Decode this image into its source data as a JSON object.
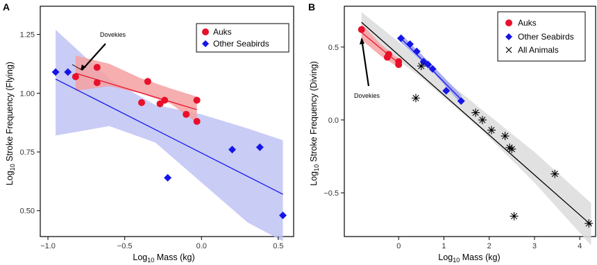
{
  "chart_data": [
    {
      "panel": "A",
      "type": "scatter",
      "xlabel": "Log10 Mass (kg)",
      "ylabel": "Log10 Stroke Frequency (Flying)",
      "xlim": [
        -1.05,
        0.6
      ],
      "ylim": [
        0.39,
        1.37
      ],
      "xticks": [
        -1.0,
        -0.5,
        0.0,
        0.5
      ],
      "xtick_labels": [
        "−1.0",
        "−0.5",
        "0.0",
        "0.5"
      ],
      "yticks": [
        0.5,
        0.75,
        1.0,
        1.25
      ],
      "ytick_labels": [
        "0.50",
        "0.75",
        "1.00",
        "1.25"
      ],
      "grid": false,
      "legend_position": "top-right",
      "annotation": {
        "text": "Dovekies",
        "points_to": [
          -0.82,
          1.07
        ]
      },
      "series": [
        {
          "name": "Auks",
          "marker": "circle",
          "color": "#e8102a",
          "x": [
            -0.82,
            -0.68,
            -0.68,
            -0.35,
            -0.39,
            -0.27,
            -0.24,
            -0.1,
            -0.03,
            -0.03
          ],
          "y": [
            1.07,
            1.11,
            1.045,
            1.05,
            0.96,
            0.955,
            0.97,
            0.91,
            0.97,
            0.88
          ],
          "fit": {
            "x": [
              -0.82,
              -0.03
            ],
            "y": [
              1.085,
              0.93
            ]
          },
          "ci_band": {
            "x": [
              -0.82,
              -0.6,
              -0.4,
              -0.2,
              -0.03
            ],
            "upper": [
              1.16,
              1.125,
              1.065,
              1.02,
              0.985
            ],
            "lower": [
              1.01,
              1.03,
              1.0,
              0.955,
              0.875
            ]
          },
          "ci_color": "#f4a0a0"
        },
        {
          "name": "Other Seabirds",
          "marker": "diamond",
          "color": "#1515e8",
          "x": [
            -0.95,
            -0.87,
            -0.22,
            0.2,
            0.38,
            0.53
          ],
          "y": [
            1.09,
            1.09,
            0.64,
            0.76,
            0.77,
            0.48
          ],
          "fit": {
            "x": [
              -0.95,
              0.53
            ],
            "y": [
              1.06,
              0.57
            ]
          },
          "ci_band": {
            "x": [
              -0.95,
              -0.6,
              -0.3,
              0.0,
              0.3,
              0.53
            ],
            "upper": [
              1.27,
              1.06,
              0.95,
              0.91,
              0.85,
              0.8
            ],
            "lower": [
              0.82,
              0.86,
              0.79,
              0.62,
              0.45,
              0.37
            ]
          },
          "ci_color": "#c0c3f3"
        }
      ]
    },
    {
      "panel": "B",
      "type": "scatter",
      "xlabel": "Log10 Mass (kg)",
      "ylabel": "Log10 Stroke Frequency (Diving)",
      "xlim": [
        -1.2,
        4.35
      ],
      "ylim": [
        -0.8,
        0.78
      ],
      "xticks": [
        0,
        1,
        2,
        3,
        4
      ],
      "xtick_labels": [
        "0",
        "1",
        "2",
        "3",
        "4"
      ],
      "yticks": [
        -0.5,
        0.0,
        0.5
      ],
      "ytick_labels": [
        "−0.5",
        "0.0",
        "0.5"
      ],
      "grid": false,
      "legend_position": "top-right",
      "annotation": {
        "text": "Dovekies",
        "points_to": [
          -0.82,
          0.6
        ]
      },
      "series": [
        {
          "name": "Auks",
          "marker": "circle",
          "color": "#e8102a",
          "x": [
            -0.82,
            -0.25,
            -0.22,
            0.0,
            0.0
          ],
          "y": [
            0.62,
            0.43,
            0.45,
            0.38,
            0.4
          ],
          "fit": {
            "x": [
              -0.82,
              0.0
            ],
            "y": [
              0.6,
              0.39
            ]
          },
          "ci_band": {
            "x": [
              -0.82,
              -0.4,
              0.0
            ],
            "upper": [
              0.66,
              0.52,
              0.42
            ],
            "lower": [
              0.55,
              0.44,
              0.36
            ]
          },
          "ci_color": "#f4a0a0"
        },
        {
          "name": "Other Seabirds",
          "marker": "diamond",
          "color": "#1515e8",
          "x": [
            0.05,
            0.25,
            0.4,
            0.55,
            0.65,
            0.75,
            1.05,
            1.38
          ],
          "y": [
            0.56,
            0.52,
            0.47,
            0.4,
            0.38,
            0.35,
            0.2,
            0.13
          ],
          "fit": {
            "x": [
              0.05,
              1.38
            ],
            "y": [
              0.56,
              0.14
            ]
          },
          "ci_band": {
            "x": [
              0.05,
              0.7,
              1.38
            ],
            "upper": [
              0.59,
              0.39,
              0.17
            ],
            "lower": [
              0.53,
              0.35,
              0.11
            ]
          },
          "ci_color": "#9ea2f0"
        },
        {
          "name": "All Animals",
          "marker": "asterisk",
          "color": "#000000",
          "x": [
            0.38,
            0.5,
            1.7,
            1.85,
            2.05,
            2.35,
            2.45,
            2.5,
            2.55,
            3.45,
            4.2
          ],
          "y": [
            0.15,
            0.37,
            0.05,
            0.0,
            -0.07,
            -0.11,
            -0.19,
            -0.2,
            -0.66,
            -0.37,
            -0.71
          ],
          "fit": {
            "x": [
              -0.82,
              4.25
            ],
            "y": [
              0.67,
              -0.72
            ]
          },
          "ci_band": {
            "x": [
              -0.82,
              0.5,
              1.8,
              3.0,
              4.25
            ],
            "upper": [
              0.74,
              0.41,
              0.08,
              -0.22,
              -0.57
            ],
            "lower": [
              0.6,
              0.29,
              -0.06,
              -0.43,
              -0.86
            ]
          },
          "ci_color": "#dcdcdc"
        }
      ]
    }
  ]
}
